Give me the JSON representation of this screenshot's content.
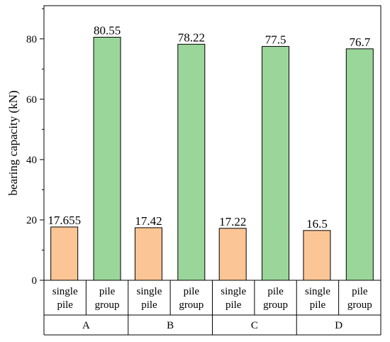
{
  "chart_data": {
    "type": "bar",
    "title": "",
    "xlabel": "",
    "ylabel": "bearing capacity (kN)",
    "ylim": [
      0,
      91
    ],
    "yticks": [
      0,
      20,
      40,
      60,
      80
    ],
    "groups": [
      "A",
      "B",
      "C",
      "D"
    ],
    "categories": [
      [
        "single",
        "pile"
      ],
      [
        "pile",
        "group"
      ],
      [
        "single",
        "pile"
      ],
      [
        "pile",
        "group"
      ],
      [
        "single",
        "pile"
      ],
      [
        "pile",
        "group"
      ],
      [
        "single",
        "pile"
      ],
      [
        "pile",
        "group"
      ]
    ],
    "values": [
      17.655,
      80.55,
      17.42,
      78.22,
      17.22,
      77.5,
      16.5,
      76.7
    ],
    "value_labels": [
      "17.655",
      "80.55",
      "17.42",
      "78.22",
      "17.22",
      "77.5",
      "16.5",
      "76.7"
    ],
    "colors": {
      "single pile": "#FCC595",
      "pile group": "#9AD69A",
      "outline": "#000000"
    },
    "grid": false,
    "legend": "none"
  }
}
